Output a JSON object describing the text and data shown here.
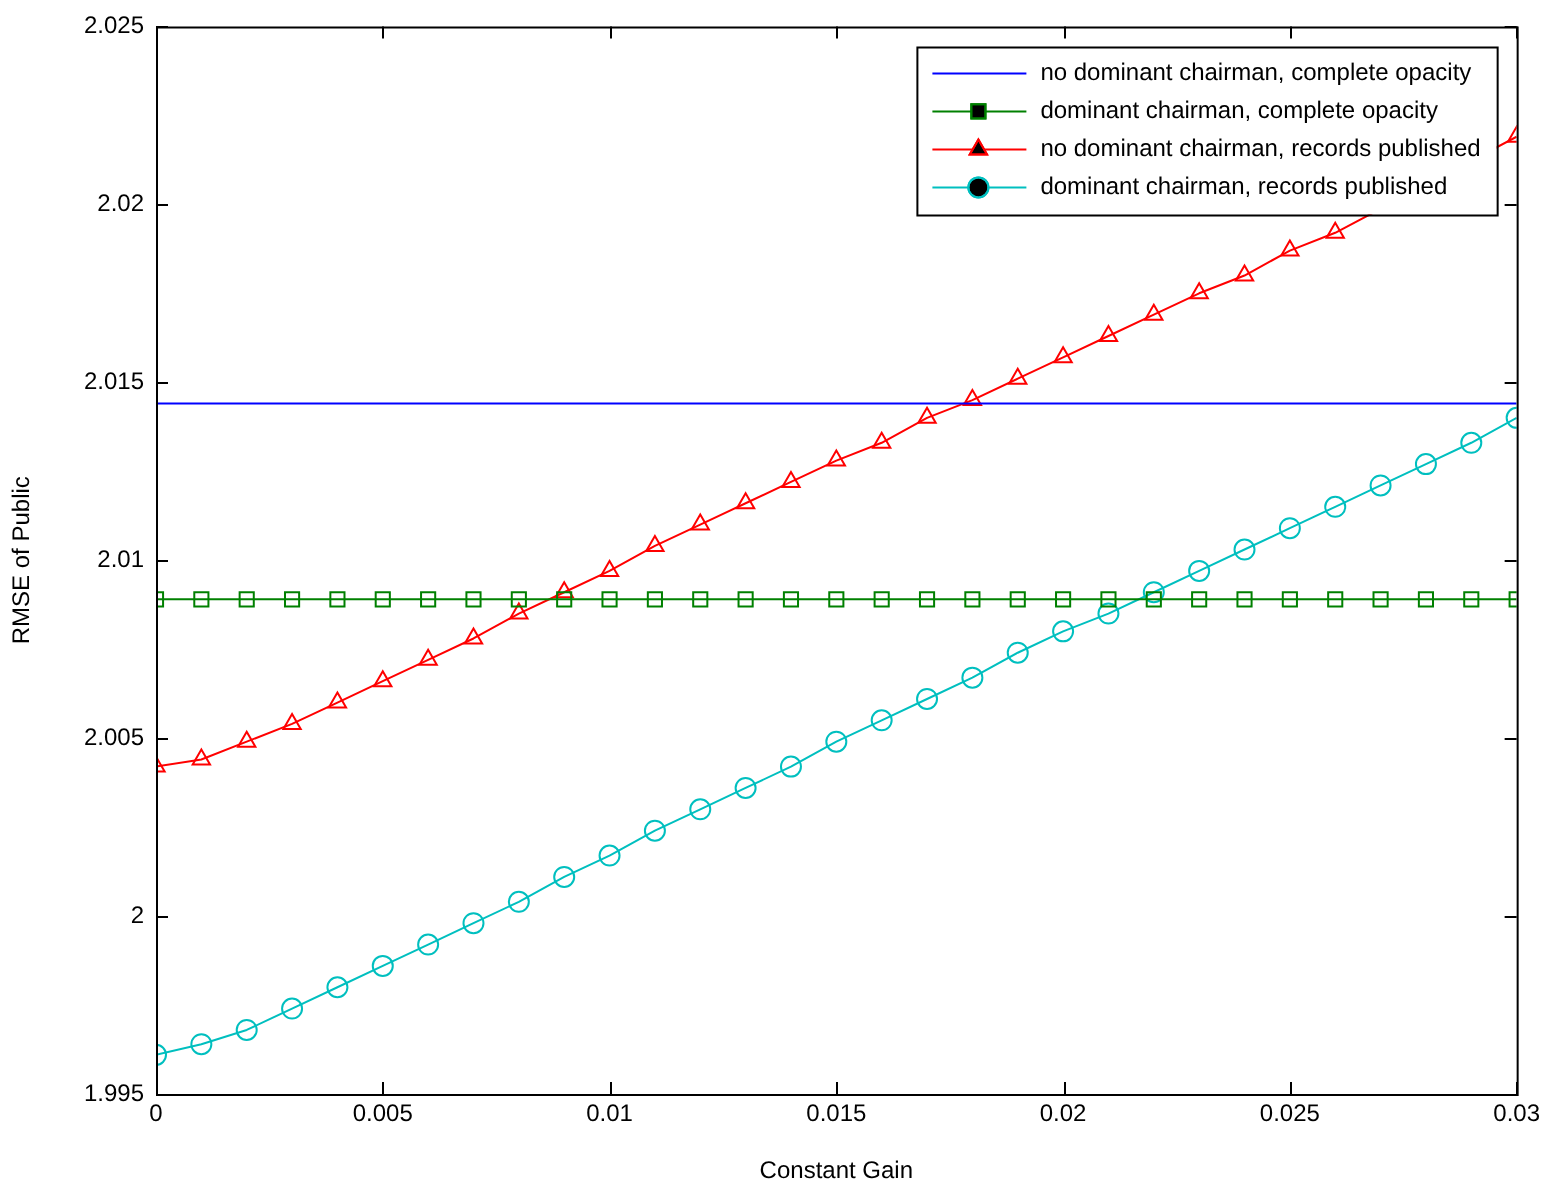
{
  "chart_data": {
    "type": "line",
    "xlabel": "Constant Gain",
    "ylabel": "RMSE of Public",
    "x": [
      0,
      0.001,
      0.002,
      0.003,
      0.004,
      0.005,
      0.006,
      0.007,
      0.008,
      0.009,
      0.01,
      0.011,
      0.012,
      0.013,
      0.014,
      0.015,
      0.016,
      0.017,
      0.018,
      0.019,
      0.02,
      0.021,
      0.022,
      0.023,
      0.024,
      0.025,
      0.026,
      0.027,
      0.028,
      0.029,
      0.03
    ],
    "series": [
      {
        "name": "no dominant chairman, complete opacity",
        "color": "#0000ff",
        "marker": "none",
        "values": [
          2.0144,
          2.0144,
          2.0144,
          2.0144,
          2.0144,
          2.0144,
          2.0144,
          2.0144,
          2.0144,
          2.0144,
          2.0144,
          2.0144,
          2.0144,
          2.0144,
          2.0144,
          2.0144,
          2.0144,
          2.0144,
          2.0144,
          2.0144,
          2.0144,
          2.0144,
          2.0144,
          2.0144,
          2.0144,
          2.0144,
          2.0144,
          2.0144,
          2.0144,
          2.0144,
          2.0144
        ]
      },
      {
        "name": "dominant chairman, complete opacity",
        "color": "#008000",
        "marker": "square",
        "values": [
          2.0089,
          2.0089,
          2.0089,
          2.0089,
          2.0089,
          2.0089,
          2.0089,
          2.0089,
          2.0089,
          2.0089,
          2.0089,
          2.0089,
          2.0089,
          2.0089,
          2.0089,
          2.0089,
          2.0089,
          2.0089,
          2.0089,
          2.0089,
          2.0089,
          2.0089,
          2.0089,
          2.0089,
          2.0089,
          2.0089,
          2.0089,
          2.0089,
          2.0089,
          2.0089,
          2.0089
        ]
      },
      {
        "name": "no dominant chairman, records published",
        "color": "#ff0000",
        "marker": "triangle",
        "values": [
          2.0042,
          2.0044,
          2.0049,
          2.0054,
          2.006,
          2.0066,
          2.0072,
          2.0078,
          2.0085,
          2.0091,
          2.0097,
          2.0104,
          2.011,
          2.0116,
          2.0122,
          2.0128,
          2.0133,
          2.014,
          2.0145,
          2.0151,
          2.0157,
          2.0163,
          2.0169,
          2.0175,
          2.018,
          2.0187,
          2.0192,
          null,
          null,
          null,
          2.0219
        ]
      },
      {
        "name": "dominant chairman, records published",
        "color": "#00bfbf",
        "marker": "circle",
        "values": [
          1.9961,
          1.9964,
          1.9968,
          1.9974,
          1.998,
          1.9986,
          1.9992,
          1.9998,
          2.0004,
          2.0011,
          2.0017,
          2.0024,
          2.003,
          2.0036,
          2.0042,
          2.0049,
          2.0055,
          2.0061,
          2.0067,
          2.0074,
          2.008,
          2.0085,
          2.0091,
          2.0097,
          2.0103,
          2.0109,
          2.0115,
          2.0121,
          2.0127,
          2.0133,
          2.014
        ]
      }
    ],
    "xlim": [
      0,
      0.03
    ],
    "xticks": [
      0,
      0.005,
      0.01,
      0.015,
      0.02,
      0.025,
      0.03
    ],
    "ylim": [
      1.995,
      2.025
    ],
    "yticks": [
      1.995,
      2,
      2.005,
      2.01,
      2.015,
      2.02,
      2.025
    ],
    "grid": false,
    "legend": "top right",
    "line_style": "solid"
  }
}
